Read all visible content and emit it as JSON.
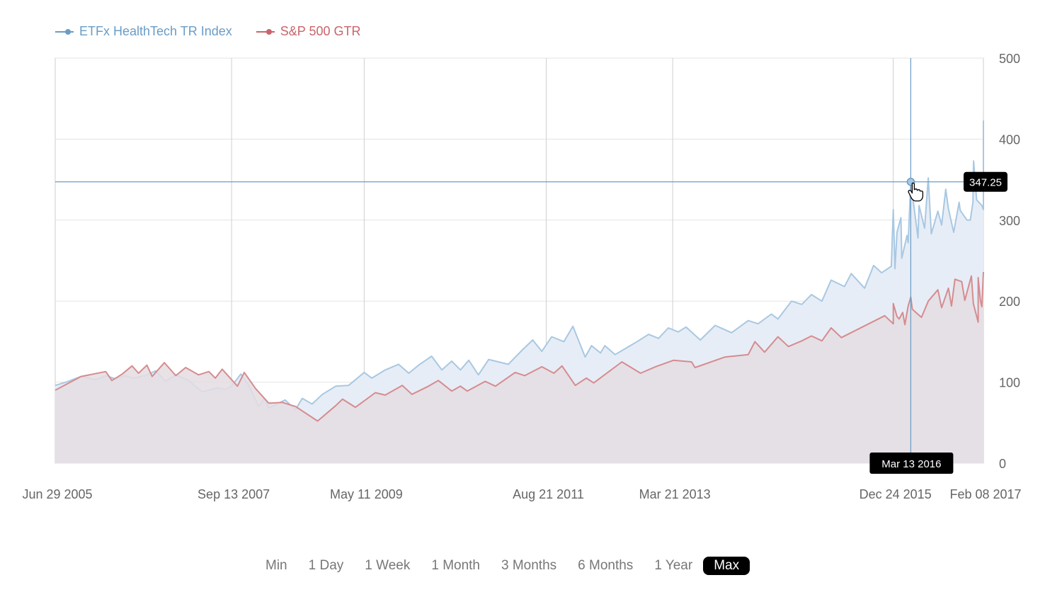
{
  "legend": [
    {
      "label": "ETFx HealthTech TR Index",
      "color": "#6a9cc6",
      "line_color": "#a8c8e2",
      "fill": "#e7edf6"
    },
    {
      "label": "S&P 500 GTR",
      "color": "#c9646b",
      "line_color": "#d58c90",
      "fill": "#e4dde2"
    }
  ],
  "range_selector": {
    "buttons": [
      "Min",
      "1 Day",
      "1 Week",
      "1 Month",
      "3 Months",
      "6 Months",
      "1 Year",
      "Max"
    ],
    "active": "Max"
  },
  "tooltip": {
    "value": "347.25",
    "date": "Mar 13 2016",
    "x": "2016-03-13",
    "y": 347.25
  },
  "chart_data": {
    "type": "area",
    "x_tick_labels": [
      "Jun 29 2005",
      "Sep 13 2007",
      "May 11 2009",
      "Aug 21 2011",
      "Mar 21 2013",
      "Dec 24 2015",
      "Feb 08 2017"
    ],
    "x_tick_dates": [
      "2005-06-29",
      "2007-09-13",
      "2009-05-11",
      "2011-08-21",
      "2013-03-21",
      "2015-12-24",
      "2017-02-08"
    ],
    "y_ticks": [
      "0",
      "100",
      "200",
      "300",
      "400",
      "500"
    ],
    "ylim": [
      0,
      500
    ],
    "y_axis_side": "right",
    "grid": true,
    "legend_position": "top-left",
    "series": [
      {
        "name": "ETFx HealthTech TR Index",
        "points": [
          [
            "2005-06-29",
            96
          ],
          [
            "2005-08-18",
            100
          ],
          [
            "2005-10-25",
            107
          ],
          [
            "2006-01-01",
            103
          ],
          [
            "2006-02-15",
            108
          ],
          [
            "2006-04-01",
            104
          ],
          [
            "2006-05-15",
            108
          ],
          [
            "2006-06-22",
            105
          ],
          [
            "2006-08-15",
            108
          ],
          [
            "2006-10-01",
            114
          ],
          [
            "2006-11-15",
            101
          ],
          [
            "2007-01-01",
            109
          ],
          [
            "2007-03-01",
            102
          ],
          [
            "2007-05-01",
            88
          ],
          [
            "2007-07-10",
            93
          ],
          [
            "2007-08-15",
            91
          ],
          [
            "2007-09-13",
            95
          ],
          [
            "2007-10-25",
            110
          ],
          [
            "2007-12-01",
            96
          ],
          [
            "2008-01-15",
            70
          ],
          [
            "2008-02-10",
            80
          ],
          [
            "2008-03-01",
            68
          ],
          [
            "2008-05-15",
            78
          ],
          [
            "2008-07-01",
            66
          ],
          [
            "2008-08-01",
            80
          ],
          [
            "2008-09-15",
            73
          ],
          [
            "2008-11-01",
            85
          ],
          [
            "2009-01-01",
            95
          ],
          [
            "2009-03-01",
            96
          ],
          [
            "2009-05-11",
            112
          ],
          [
            "2009-06-15",
            105
          ],
          [
            "2009-08-15",
            115
          ],
          [
            "2009-10-15",
            122
          ],
          [
            "2009-12-01",
            111
          ],
          [
            "2010-01-15",
            121
          ],
          [
            "2010-03-15",
            132
          ],
          [
            "2010-05-01",
            115
          ],
          [
            "2010-06-15",
            126
          ],
          [
            "2010-07-25",
            115
          ],
          [
            "2010-09-01",
            127
          ],
          [
            "2010-10-15",
            109
          ],
          [
            "2010-12-01",
            128
          ],
          [
            "2011-03-01",
            122
          ],
          [
            "2011-05-01",
            139
          ],
          [
            "2011-06-20",
            152
          ],
          [
            "2011-08-01",
            138
          ],
          [
            "2011-09-15",
            156
          ],
          [
            "2011-11-10",
            150
          ],
          [
            "2011-12-21",
            169
          ],
          [
            "2012-02-15",
            131
          ],
          [
            "2012-03-15",
            145
          ],
          [
            "2012-04-25",
            136
          ],
          [
            "2012-05-15",
            145
          ],
          [
            "2012-07-01",
            134
          ],
          [
            "2012-10-15",
            151
          ],
          [
            "2012-12-01",
            159
          ],
          [
            "2013-01-15",
            154
          ],
          [
            "2013-03-01",
            167
          ],
          [
            "2013-04-15",
            162
          ],
          [
            "2013-05-21",
            168
          ],
          [
            "2013-07-25",
            152
          ],
          [
            "2013-10-01",
            170
          ],
          [
            "2013-12-15",
            161
          ],
          [
            "2014-03-01",
            176
          ],
          [
            "2014-04-15",
            172
          ],
          [
            "2014-06-15",
            184
          ],
          [
            "2014-07-15",
            178
          ],
          [
            "2014-09-15",
            200
          ],
          [
            "2014-11-01",
            196
          ],
          [
            "2014-12-15",
            208
          ],
          [
            "2015-02-01",
            200
          ],
          [
            "2015-03-15",
            226
          ],
          [
            "2015-05-15",
            218
          ],
          [
            "2015-06-15",
            234
          ],
          [
            "2015-08-15",
            216
          ],
          [
            "2015-09-25",
            244
          ],
          [
            "2015-11-01",
            235
          ],
          [
            "2015-12-15",
            243
          ],
          [
            "2016-01-01",
            240
          ],
          [
            "2016-02-01",
            253
          ],
          [
            "2016-03-01",
            272
          ],
          [
            "2016-04-15",
            278
          ],
          [
            "2016-05-15",
            290
          ],
          [
            "2016-06-15",
            283
          ],
          [
            "2016-07-15",
            311
          ],
          [
            "2016-08-01",
            294
          ],
          [
            "2016-09-01",
            314
          ],
          [
            "2016-09-25",
            285
          ],
          [
            "2016-10-25",
            312
          ],
          [
            "2016-11-25",
            300
          ],
          [
            "2016-12-10",
            300
          ],
          [
            "2016-12-22",
            322
          ],
          [
            "2017-01-08",
            325
          ],
          [
            "2017-02-01",
            318
          ],
          [
            "2017-02-08",
            313
          ],
          [
            "2015-12-24",
            313
          ],
          [
            "2016-01-10",
            285
          ],
          [
            "2016-01-28",
            303
          ],
          [
            "2016-02-25",
            281
          ],
          [
            "2016-03-13",
            347.25
          ],
          [
            "2016-04-20",
            318
          ],
          [
            "2016-06-01",
            352
          ],
          [
            "2016-08-20",
            338
          ],
          [
            "2016-10-20",
            322
          ],
          [
            "2016-12-25",
            373
          ],
          [
            "2017-02-08",
            423
          ]
        ]
      },
      {
        "name": "S&P 500 GTR",
        "points": [
          [
            "2005-06-29",
            90
          ],
          [
            "2005-10-25",
            107
          ],
          [
            "2006-02-15",
            113
          ],
          [
            "2006-03-15",
            102
          ],
          [
            "2006-05-01",
            110
          ],
          [
            "2006-06-15",
            120
          ],
          [
            "2006-07-15",
            111
          ],
          [
            "2006-08-22",
            121
          ],
          [
            "2006-09-15",
            107
          ],
          [
            "2006-11-10",
            124
          ],
          [
            "2007-01-01",
            108
          ],
          [
            "2007-02-15",
            118
          ],
          [
            "2007-04-15",
            109
          ],
          [
            "2007-06-01",
            113
          ],
          [
            "2007-07-01",
            105
          ],
          [
            "2007-08-01",
            116
          ],
          [
            "2007-10-10",
            95
          ],
          [
            "2007-11-10",
            112
          ],
          [
            "2008-01-01",
            92
          ],
          [
            "2008-03-01",
            74
          ],
          [
            "2008-05-01",
            75
          ],
          [
            "2008-07-01",
            70
          ],
          [
            "2008-10-10",
            52
          ],
          [
            "2009-01-01",
            71
          ],
          [
            "2009-02-01",
            79
          ],
          [
            "2009-04-01",
            69
          ],
          [
            "2009-07-01",
            87
          ],
          [
            "2009-08-15",
            84
          ],
          [
            "2009-11-01",
            96
          ],
          [
            "2009-12-15",
            85
          ],
          [
            "2010-03-01",
            95
          ],
          [
            "2010-04-15",
            102
          ],
          [
            "2010-06-15",
            89
          ],
          [
            "2010-07-25",
            95
          ],
          [
            "2010-08-25",
            89
          ],
          [
            "2010-11-15",
            101
          ],
          [
            "2011-01-01",
            95
          ],
          [
            "2011-04-01",
            112
          ],
          [
            "2011-05-15",
            108
          ],
          [
            "2011-08-01",
            119
          ],
          [
            "2011-09-25",
            111
          ],
          [
            "2011-11-01",
            120
          ],
          [
            "2012-01-01",
            96
          ],
          [
            "2012-02-20",
            105
          ],
          [
            "2012-03-25",
            99
          ],
          [
            "2012-08-01",
            125
          ],
          [
            "2012-10-25",
            111
          ],
          [
            "2013-01-01",
            119
          ],
          [
            "2013-03-25",
            127
          ],
          [
            "2013-06-15",
            125
          ],
          [
            "2013-07-01",
            118
          ],
          [
            "2013-11-15",
            131
          ],
          [
            "2014-03-01",
            134
          ],
          [
            "2014-04-01",
            150
          ],
          [
            "2014-05-15",
            137
          ],
          [
            "2014-07-15",
            156
          ],
          [
            "2014-09-01",
            144
          ],
          [
            "2014-11-01",
            151
          ],
          [
            "2014-12-15",
            157
          ],
          [
            "2015-02-01",
            151
          ],
          [
            "2015-03-15",
            167
          ],
          [
            "2015-05-01",
            155
          ],
          [
            "2015-11-15",
            182
          ],
          [
            "2015-12-24",
            172
          ],
          [
            "2016-01-10",
            181
          ],
          [
            "2016-02-15",
            171
          ],
          [
            "2016-03-20",
            190
          ],
          [
            "2016-05-01",
            180
          ],
          [
            "2016-08-01",
            192
          ],
          [
            "2016-09-15",
            194
          ],
          [
            "2016-11-15",
            201
          ],
          [
            "2016-12-24",
            197
          ],
          [
            "2017-01-15",
            174
          ],
          [
            "2017-01-25",
            201
          ],
          [
            "2017-02-01",
            193
          ],
          [
            "2015-12-24",
            197
          ],
          [
            "2016-01-20",
            178
          ],
          [
            "2016-02-05",
            186
          ],
          [
            "2016-03-01",
            194
          ],
          [
            "2016-03-13",
            205
          ],
          [
            "2016-06-01",
            200
          ],
          [
            "2016-07-15",
            214
          ],
          [
            "2016-09-01",
            216
          ],
          [
            "2016-10-01",
            227
          ],
          [
            "2016-11-01",
            224
          ],
          [
            "2016-12-15",
            231
          ],
          [
            "2017-01-15",
            229
          ],
          [
            "2017-02-08",
            236
          ]
        ]
      }
    ]
  }
}
